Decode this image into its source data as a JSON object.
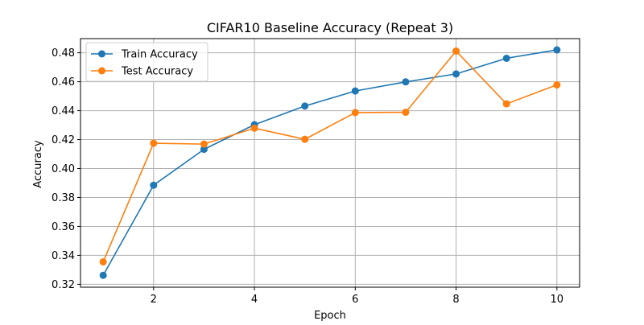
{
  "chart_data": {
    "type": "line",
    "title": "CIFAR10 Baseline Accuracy (Repeat 3)",
    "xlabel": "Epoch",
    "ylabel": "Accuracy",
    "xlim": [
      0.55,
      10.45
    ],
    "ylim": [
      0.318,
      0.4898
    ],
    "xticks": [
      2,
      4,
      6,
      8,
      10
    ],
    "yticks": [
      0.32,
      0.34,
      0.36,
      0.38,
      0.4,
      0.42,
      0.44,
      0.46,
      0.48
    ],
    "xtick_labels": [
      "2",
      "4",
      "6",
      "8",
      "10"
    ],
    "ytick_labels": [
      "0.32",
      "0.34",
      "0.36",
      "0.38",
      "0.40",
      "0.42",
      "0.44",
      "0.46",
      "0.48"
    ],
    "grid": true,
    "legend_position": "top-left",
    "x": [
      1,
      2,
      3,
      4,
      5,
      6,
      7,
      8,
      9,
      10
    ],
    "series": [
      {
        "name": "Train Accuracy",
        "color": "#1f77b4",
        "values": [
          0.3262,
          0.3885,
          0.4133,
          0.4303,
          0.4432,
          0.4536,
          0.4599,
          0.4654,
          0.4762,
          0.482
        ]
      },
      {
        "name": "Test Accuracy",
        "color": "#ff7f0e",
        "values": [
          0.3355,
          0.4175,
          0.4169,
          0.4279,
          0.4202,
          0.4387,
          0.4389,
          0.4812,
          0.4447,
          0.4578
        ]
      }
    ]
  }
}
